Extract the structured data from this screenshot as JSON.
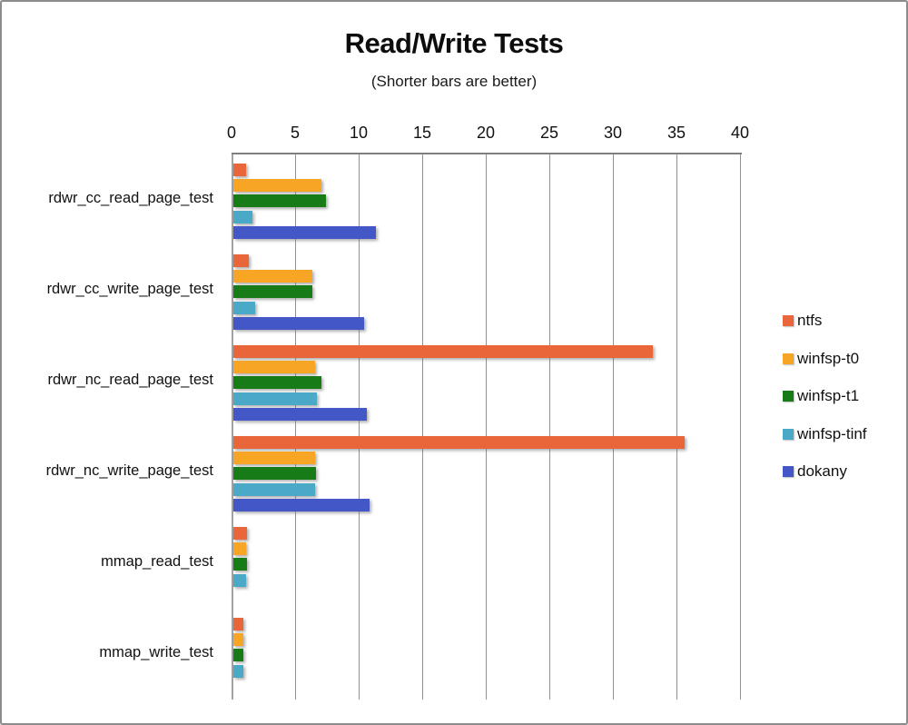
{
  "title": "Read/Write Tests",
  "subtitle": "(Shorter bars are better)",
  "chart_data": {
    "type": "bar",
    "orientation": "horizontal",
    "title": "Read/Write Tests",
    "subtitle": "(Shorter bars are better)",
    "xlabel": "",
    "ylabel": "",
    "xlim": [
      0,
      40
    ],
    "x_ticks": [
      0,
      5,
      10,
      15,
      20,
      25,
      30,
      35,
      40
    ],
    "grid": true,
    "legend_position": "right",
    "categories": [
      "rdwr_cc_read_page_test",
      "rdwr_cc_write_page_test",
      "rdwr_nc_read_page_test",
      "rdwr_nc_write_page_test",
      "mmap_read_test",
      "mmap_write_test"
    ],
    "series": [
      {
        "name": "ntfs",
        "color": "#e9663b",
        "values": [
          1.0,
          1.2,
          33.0,
          35.5,
          1.1,
          0.8
        ]
      },
      {
        "name": "winfsp-t0",
        "color": "#f6a524",
        "values": [
          6.9,
          6.2,
          6.4,
          6.4,
          1.0,
          0.75
        ]
      },
      {
        "name": "winfsp-t1",
        "color": "#177c17",
        "values": [
          7.3,
          6.2,
          6.9,
          6.5,
          1.05,
          0.8
        ]
      },
      {
        "name": "winfsp-tinf",
        "color": "#4aa9c6",
        "values": [
          1.5,
          1.7,
          6.6,
          6.4,
          1.0,
          0.75
        ]
      },
      {
        "name": "dokany",
        "color": "#4457c6",
        "values": [
          11.2,
          10.3,
          10.5,
          10.7,
          0,
          0
        ]
      }
    ],
    "colors": {
      "gridline": "#919191",
      "axis": "#7f7f7f",
      "text": "#111111",
      "background": "#ffffff",
      "frame_border": "#8c8c8c"
    }
  }
}
